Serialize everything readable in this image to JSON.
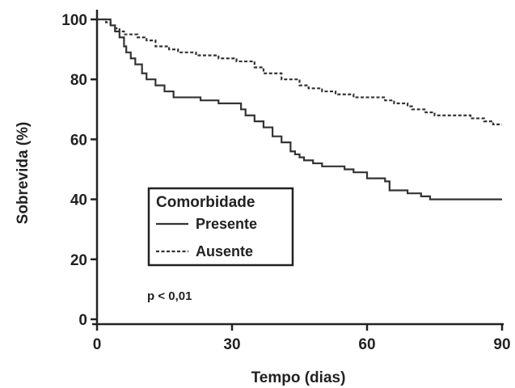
{
  "chart_data": {
    "type": "line",
    "xlabel": "Tempo (dias)",
    "ylabel": "Sobrevida (%)",
    "xlim": [
      0,
      90
    ],
    "ylim": [
      0,
      100
    ],
    "xticks": [
      0,
      30,
      60,
      90
    ],
    "yticks": [
      0,
      20,
      40,
      60,
      80,
      100
    ],
    "grid": false,
    "legend": {
      "title": "Comorbidade",
      "placement": "lower-left",
      "entries": [
        "Presente",
        "Ausente"
      ]
    },
    "annotation": "p < 0,01",
    "series": [
      {
        "name": "Presente",
        "style": "solid",
        "color": "#333333",
        "x": [
          0,
          3,
          4,
          5,
          6,
          6.5,
          7.5,
          8.5,
          10,
          11,
          13,
          15,
          17,
          19,
          21,
          23,
          27,
          32,
          33,
          35,
          37,
          39,
          41,
          43,
          44,
          45,
          46,
          48,
          50,
          53,
          55,
          57,
          60,
          64,
          65,
          69,
          72,
          74,
          90
        ],
        "y": [
          100,
          98,
          96,
          94,
          91,
          89,
          87,
          85,
          82,
          80,
          78,
          76,
          74,
          74,
          74,
          73,
          72,
          70,
          68,
          66,
          64,
          61,
          59,
          56,
          55,
          54,
          53,
          52,
          51,
          51,
          50,
          49,
          47,
          46,
          43,
          42,
          41,
          40,
          40
        ]
      },
      {
        "name": "Ausente",
        "style": "dashed",
        "color": "#333333",
        "x": [
          0,
          2,
          3,
          4,
          5,
          6,
          7,
          9,
          11,
          13,
          16,
          18,
          22,
          27,
          31,
          35,
          37,
          41,
          45,
          47,
          50,
          53,
          57,
          61,
          64,
          66,
          69,
          70,
          73,
          75,
          79,
          83,
          86,
          88,
          90
        ],
        "y": [
          100,
          99,
          98,
          97,
          96,
          95,
          95,
          94,
          93,
          91,
          90,
          89,
          88,
          87,
          86,
          84,
          82,
          80,
          78,
          77,
          76,
          75,
          74,
          74,
          73,
          72,
          71,
          70,
          69,
          68,
          68,
          67,
          66,
          65,
          65
        ]
      }
    ]
  }
}
